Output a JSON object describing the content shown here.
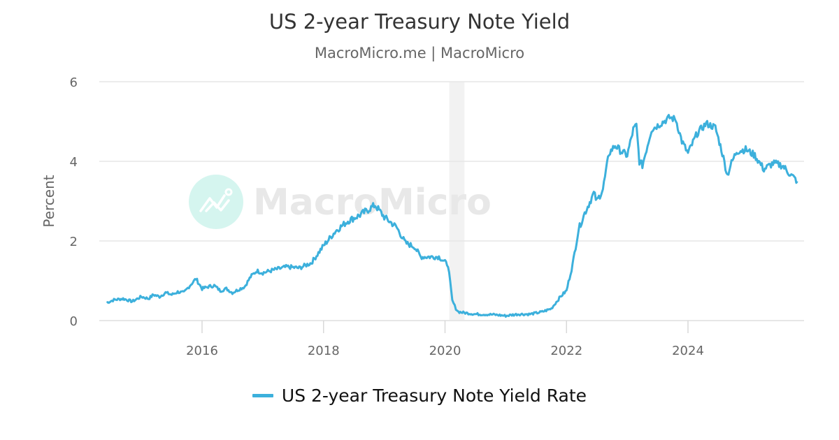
{
  "header": {
    "title": "US 2-year Treasury Note Yield",
    "subtitle": "MacroMicro.me | MacroMicro"
  },
  "watermark": {
    "text": "MacroMicro",
    "icon": "macromicro-logo-icon"
  },
  "colors": {
    "series": "#3cb0dc",
    "grid": "#e6e6e6",
    "recession": "#f2f2f2",
    "text": "#666666",
    "title": "#333333",
    "watermark_circle": "#d5f5ef",
    "watermark_text": "#e8e8e8"
  },
  "legend": {
    "items": [
      {
        "label": "US 2-year Treasury Note Yield Rate",
        "color": "#3cb0dc"
      }
    ]
  },
  "chart_data": {
    "type": "line",
    "title": "US 2-year Treasury Note Yield",
    "subtitle": "MacroMicro.me | MacroMicro",
    "xlabel": "",
    "ylabel": "Percent",
    "ylim": [
      0,
      6
    ],
    "yticks": [
      0,
      2,
      4,
      6
    ],
    "xticks": [
      "2016",
      "2018",
      "2020",
      "2022",
      "2024"
    ],
    "xlim": [
      2014.3,
      2025.9
    ],
    "grid": true,
    "legend_position": "bottom",
    "shaded_regions": [
      {
        "label": "recession",
        "x0": 2020.07,
        "x1": 2020.32
      }
    ],
    "series": [
      {
        "name": "US 2-year Treasury Note Yield Rate",
        "x": [
          2014.43,
          2014.55,
          2014.7,
          2014.85,
          2015.0,
          2015.12,
          2015.2,
          2015.3,
          2015.4,
          2015.5,
          2015.6,
          2015.7,
          2015.8,
          2015.9,
          2016.0,
          2016.1,
          2016.2,
          2016.3,
          2016.4,
          2016.5,
          2016.6,
          2016.7,
          2016.8,
          2016.9,
          2017.0,
          2017.2,
          2017.4,
          2017.6,
          2017.8,
          2018.0,
          2018.2,
          2018.4,
          2018.6,
          2018.75,
          2018.85,
          2019.0,
          2019.2,
          2019.35,
          2019.5,
          2019.6,
          2019.75,
          2019.9,
          2020.05,
          2020.12,
          2020.18,
          2020.22,
          2020.3,
          2020.5,
          2020.8,
          2021.0,
          2021.2,
          2021.4,
          2021.6,
          2021.75,
          2021.9,
          2022.0,
          2022.1,
          2022.2,
          2022.3,
          2022.45,
          2022.5,
          2022.6,
          2022.7,
          2022.8,
          2022.9,
          2023.0,
          2023.1,
          2023.15,
          2023.2,
          2023.25,
          2023.4,
          2023.55,
          2023.7,
          2023.8,
          2023.9,
          2024.0,
          2024.15,
          2024.3,
          2024.45,
          2024.55,
          2024.65,
          2024.7,
          2024.8,
          2024.95,
          2025.1,
          2025.25,
          2025.4,
          2025.55,
          2025.7,
          2025.8
        ],
        "values": [
          0.45,
          0.52,
          0.55,
          0.48,
          0.6,
          0.55,
          0.65,
          0.6,
          0.7,
          0.65,
          0.72,
          0.7,
          0.88,
          1.05,
          0.8,
          0.85,
          0.88,
          0.75,
          0.8,
          0.7,
          0.78,
          0.85,
          1.1,
          1.25,
          1.2,
          1.28,
          1.35,
          1.32,
          1.45,
          1.88,
          2.25,
          2.5,
          2.65,
          2.8,
          2.9,
          2.6,
          2.35,
          1.95,
          1.85,
          1.6,
          1.6,
          1.6,
          1.4,
          0.5,
          0.3,
          0.22,
          0.2,
          0.16,
          0.15,
          0.12,
          0.16,
          0.16,
          0.22,
          0.3,
          0.6,
          0.75,
          1.4,
          2.3,
          2.7,
          3.2,
          3.0,
          3.3,
          4.2,
          4.4,
          4.25,
          4.15,
          4.8,
          4.9,
          4.0,
          3.9,
          4.8,
          4.95,
          5.1,
          5.05,
          4.5,
          4.2,
          4.7,
          4.95,
          4.85,
          4.3,
          3.65,
          3.9,
          4.25,
          4.3,
          4.15,
          3.8,
          3.95,
          3.9,
          3.65,
          3.5
        ]
      }
    ]
  }
}
